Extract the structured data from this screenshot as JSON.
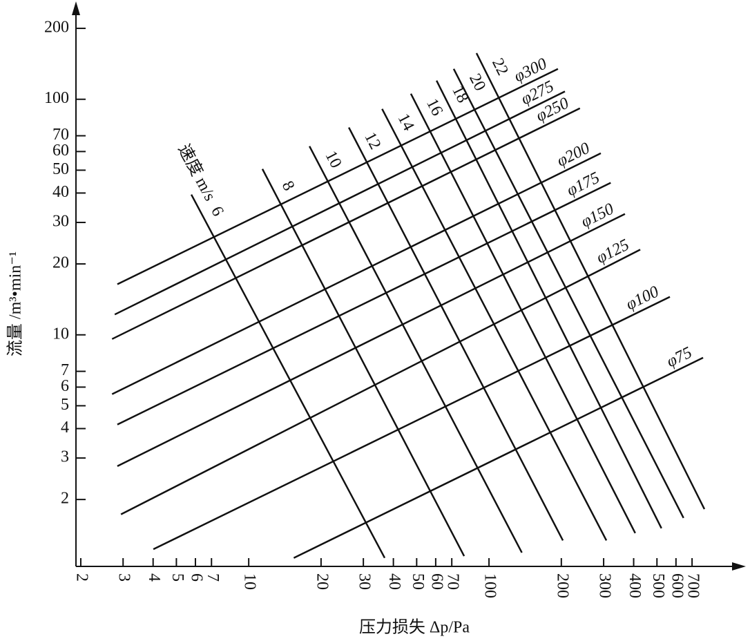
{
  "chart_data": {
    "type": "nomogram",
    "x_label": "压力损失 Δp/Pa",
    "y_label": "流量 /m³•min⁻¹",
    "velocity_label": "速度 m/s",
    "log_x": true,
    "log_y": true,
    "xlim": [
      1.91,
      1000
    ],
    "ylim": [
      1.04,
      245
    ],
    "xticks": [
      2,
      3,
      4,
      5,
      6,
      7,
      10,
      20,
      30,
      40,
      50,
      60,
      70,
      100,
      200,
      300,
      400,
      500,
      600,
      700
    ],
    "yticks": [
      2,
      3,
      4,
      5,
      6,
      7,
      10,
      20,
      30,
      40,
      50,
      60,
      70,
      100,
      200
    ],
    "color": "#111111",
    "diameter_series": [
      {
        "name": "φ300",
        "x": [
          2.84,
          193.6
        ],
        "y": [
          16.4,
          134.6
        ]
      },
      {
        "name": "φ275",
        "x": [
          2.77,
          207
        ],
        "y": [
          12.2,
          108
        ]
      },
      {
        "name": "φ250",
        "x": [
          2.7,
          239
        ],
        "y": [
          9.6,
          91.6
        ]
      },
      {
        "name": "φ200",
        "x": [
          2.7,
          292
        ],
        "y": [
          5.6,
          59
        ]
      },
      {
        "name": "φ175",
        "x": [
          2.84,
          321
        ],
        "y": [
          4.16,
          44.2
        ]
      },
      {
        "name": "φ150",
        "x": [
          2.84,
          368
        ],
        "y": [
          2.77,
          32.6
        ]
      },
      {
        "name": "φ125",
        "x": [
          2.94,
          426
        ],
        "y": [
          1.73,
          23
        ]
      },
      {
        "name": "φ100",
        "x": [
          4.01,
          566
        ],
        "y": [
          1.23,
          14.5
        ]
      },
      {
        "name": "φ75",
        "x": [
          15.4,
          778
        ],
        "y": [
          1.13,
          8
        ]
      }
    ],
    "velocity_series": [
      {
        "name": "6",
        "x": [
          5.77,
          36.8
        ],
        "y": [
          39.4,
          1.13
        ]
      },
      {
        "name": "8",
        "x": [
          11.4,
          78.8
        ],
        "y": [
          50.6,
          1.15
        ]
      },
      {
        "name": "10",
        "x": [
          17.9,
          137
        ],
        "y": [
          63.2,
          1.19
        ]
      },
      {
        "name": "12",
        "x": [
          26.1,
          203
        ],
        "y": [
          75.9,
          1.34
        ]
      },
      {
        "name": "14",
        "x": [
          35.9,
          308
        ],
        "y": [
          91,
          1.34
        ]
      },
      {
        "name": "16",
        "x": [
          47.3,
          406
        ],
        "y": [
          105.6,
          1.44
        ]
      },
      {
        "name": "18",
        "x": [
          60.5,
          522
        ],
        "y": [
          120,
          1.51
        ]
      },
      {
        "name": "20",
        "x": [
          71.3,
          645
        ],
        "y": [
          134.6,
          1.67
        ]
      },
      {
        "name": "22",
        "x": [
          88.7,
          788
        ],
        "y": [
          157,
          1.82
        ]
      }
    ]
  }
}
